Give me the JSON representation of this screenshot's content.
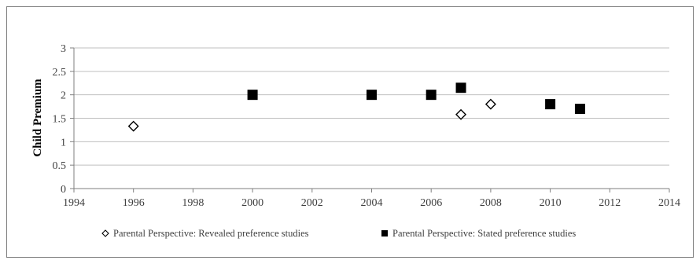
{
  "chart_data": {
    "type": "scatter",
    "title": "",
    "xlabel": "",
    "ylabel": "Child Premium",
    "xlim": [
      1994,
      2014
    ],
    "ylim": [
      0,
      3
    ],
    "xticks": [
      "1994",
      "1996",
      "1998",
      "2000",
      "2002",
      "2004",
      "2006",
      "2008",
      "2010",
      "2012",
      "2014"
    ],
    "yticks": [
      "0",
      "0.5",
      "1",
      "1.5",
      "2",
      "2.5",
      "3"
    ],
    "grid": "horizontal",
    "legend_position": "bottom",
    "series": [
      {
        "name": "Parental Perspective: Revealed preference studies",
        "marker": "diamond-open",
        "color": "#000000",
        "x": [
          1996,
          2007,
          2008
        ],
        "y": [
          1.33,
          1.58,
          1.8
        ]
      },
      {
        "name": "Parental Perspective: Stated preference studies",
        "marker": "square-filled",
        "color": "#000000",
        "x": [
          2000,
          2004,
          2006,
          2007,
          2010,
          2011
        ],
        "y": [
          2.0,
          2.0,
          2.0,
          2.15,
          1.8,
          1.7
        ]
      }
    ]
  }
}
